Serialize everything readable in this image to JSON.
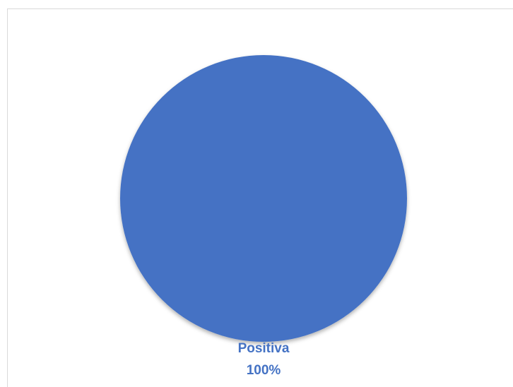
{
  "chart_data": {
    "type": "pie",
    "categories": [
      "Positiva"
    ],
    "values": [
      100
    ],
    "value_labels": [
      "100%"
    ],
    "colors": [
      "#4472c4"
    ]
  }
}
